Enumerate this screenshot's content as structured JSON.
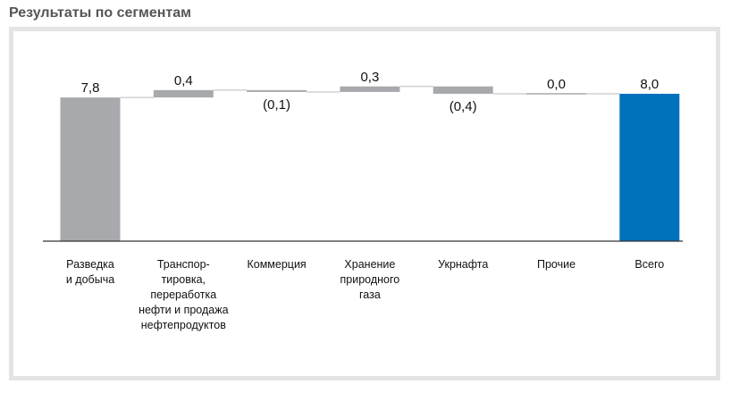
{
  "page": {
    "title": "Результаты по сегментам"
  },
  "colors": {
    "bar_gray": "#a7a9ac",
    "bar_blue": "#0072bc",
    "connector": "#bbbbbb",
    "axis": "#333333"
  },
  "chart_data": {
    "type": "bar",
    "subtype": "waterfall",
    "title": "Результаты по сегментам",
    "xlabel": "",
    "ylabel": "",
    "categories": [
      [
        "Разведка",
        "и добыча"
      ],
      [
        "Транспор-",
        "тировка,",
        "переработка",
        "нефти и продажа",
        "нефтепродуктов"
      ],
      [
        "Коммерция"
      ],
      [
        "Хранение",
        "природного",
        "газа"
      ],
      [
        "Укрнафта"
      ],
      [
        "Прочие"
      ],
      [
        "Всего"
      ]
    ],
    "values": [
      7.8,
      0.4,
      -0.1,
      0.3,
      -0.4,
      0.0,
      8.0
    ],
    "value_labels": [
      "7,8",
      "0,4",
      "(0,1)",
      "0,3",
      "(0,4)",
      "0,0",
      "8,0"
    ],
    "kinds": [
      "start",
      "delta",
      "delta",
      "delta",
      "delta",
      "delta",
      "total"
    ],
    "ylim": [
      0,
      8.0
    ],
    "grid": false,
    "legend": "none"
  }
}
